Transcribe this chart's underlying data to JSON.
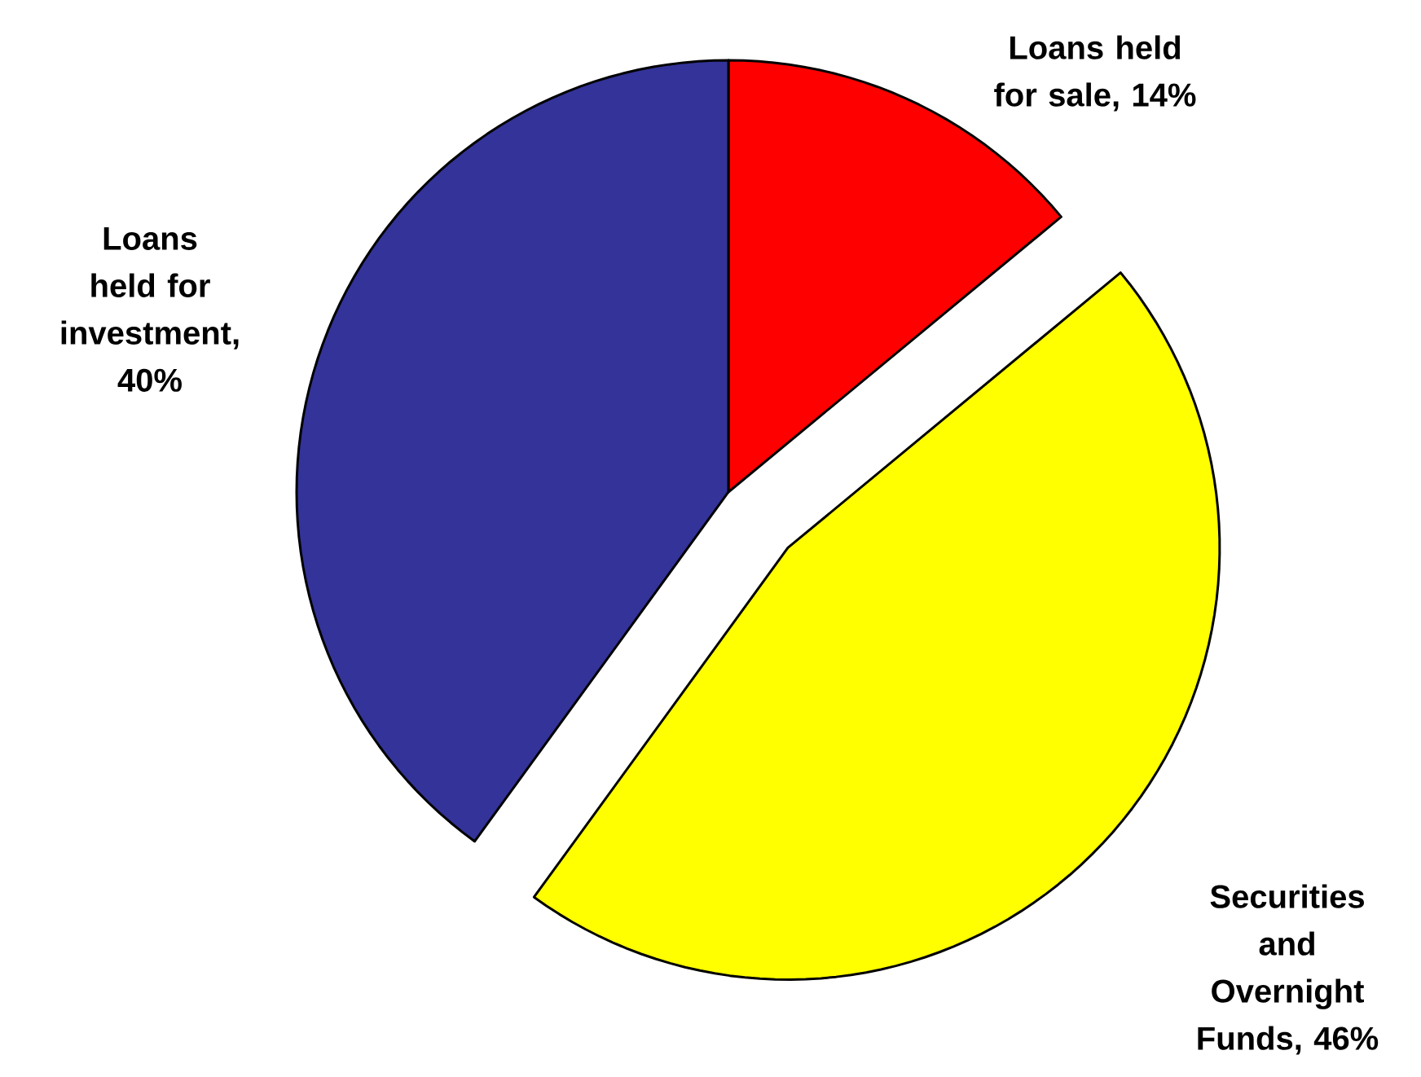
{
  "chart_data": {
    "type": "pie",
    "categories": [
      "Loans held for sale, 14%",
      "Securities and Overnight Funds, 46%",
      "Loans held for investment, 40%"
    ],
    "values": [
      14,
      46,
      40
    ],
    "colors": [
      "#ff0000",
      "#ffff00",
      "#333399"
    ]
  }
}
